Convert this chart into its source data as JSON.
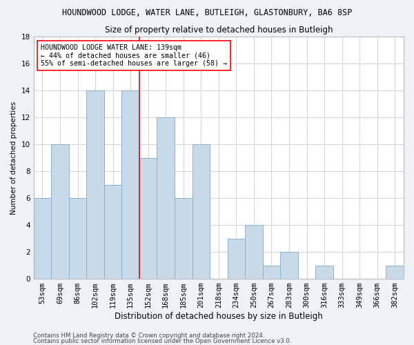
{
  "title": "HOUNDWOOD LODGE, WATER LANE, BUTLEIGH, GLASTONBURY, BA6 8SP",
  "subtitle": "Size of property relative to detached houses in Butleigh",
  "xlabel": "Distribution of detached houses by size in Butleigh",
  "ylabel": "Number of detached properties",
  "categories": [
    "53sqm",
    "69sqm",
    "86sqm",
    "102sqm",
    "119sqm",
    "135sqm",
    "152sqm",
    "168sqm",
    "185sqm",
    "201sqm",
    "218sqm",
    "234sqm",
    "250sqm",
    "267sqm",
    "283sqm",
    "300sqm",
    "316sqm",
    "333sqm",
    "349sqm",
    "366sqm",
    "382sqm"
  ],
  "values": [
    6,
    10,
    6,
    14,
    7,
    14,
    9,
    12,
    6,
    10,
    0,
    3,
    4,
    1,
    2,
    0,
    1,
    0,
    0,
    0,
    1
  ],
  "bar_color": "#c8daea",
  "bar_edge_color": "#8ab4cc",
  "vline_index": 5.5,
  "vline_color": "red",
  "annotation_text": "HOUNDWOOD LODGE WATER LANE: 139sqm\n← 44% of detached houses are smaller (46)\n55% of semi-detached houses are larger (58) →",
  "annotation_box_color": "white",
  "annotation_box_edge": "red",
  "ylim": [
    0,
    18
  ],
  "yticks": [
    0,
    2,
    4,
    6,
    8,
    10,
    12,
    14,
    16,
    18
  ],
  "footer_line1": "Contains HM Land Registry data © Crown copyright and database right 2024.",
  "footer_line2": "Contains public sector information licensed under the Open Government Licence v3.0.",
  "fig_background": "#eef2f7",
  "plot_background": "white",
  "grid_color": "#d0d8e0",
  "title_fontsize": 8.5,
  "subtitle_fontsize": 8.5,
  "xlabel_fontsize": 8.5,
  "ylabel_fontsize": 7.5,
  "tick_fontsize": 7.5,
  "annotation_fontsize": 7.2,
  "footer_fontsize": 6.2
}
